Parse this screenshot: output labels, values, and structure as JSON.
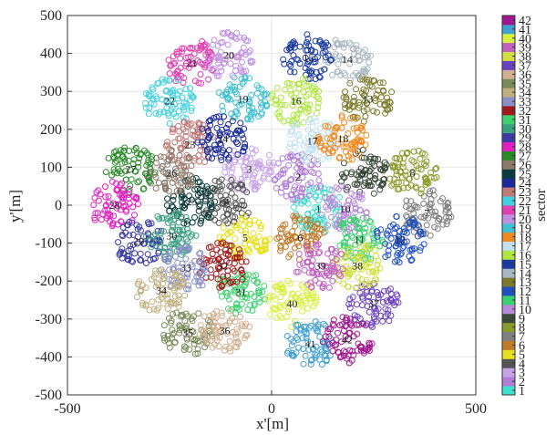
{
  "chart_data": {
    "type": "scatter",
    "title": "",
    "xlabel": "x'[m]",
    "ylabel": "y'[m]",
    "xlim": [
      -500,
      500
    ],
    "ylim": [
      -500,
      500
    ],
    "xticks": [
      "-500",
      "0",
      "500"
    ],
    "yticks": [
      "500",
      "400",
      "300",
      "200",
      "100",
      "0",
      "-100",
      "-200",
      "-300",
      "-400",
      "-500"
    ],
    "grid": true,
    "marker": "open-circle",
    "colorbar": {
      "label": "sector",
      "tick_labels": [
        "1",
        "2",
        "3",
        "4",
        "5",
        "6",
        "7",
        "8",
        "9",
        "10",
        "11",
        "12",
        "13",
        "14",
        "15",
        "16",
        "17",
        "18",
        "19",
        "20",
        "21",
        "22",
        "23",
        "24",
        "25",
        "26",
        "27",
        "28",
        "29",
        "30",
        "31",
        "32",
        "33",
        "34",
        "35",
        "36",
        "37",
        "38",
        "39",
        "40",
        "41",
        "42"
      ],
      "colors": [
        "#40e0d0",
        "#b07cd6",
        "#c6a2e6",
        "#555555",
        "#e6e020",
        "#c07a2a",
        "#7f7f7f",
        "#8a9a2a",
        "#3a4a3a",
        "#b58ad6",
        "#3ad070",
        "#2050c0",
        "#7a7a2a",
        "#a8b8c0",
        "#1a3aa0",
        "#b0e640",
        "#c0e0f0",
        "#f08a20",
        "#40c0d0",
        "#c090e0",
        "#e040b0",
        "#40d0e0",
        "#c07878",
        "#1a2a9a",
        "#0a3a3a",
        "#8a7a6a",
        "#2a8a2a",
        "#e020c0",
        "#3a3aa0",
        "#3aa080",
        "#40d070",
        "#a01a1a",
        "#8a90c8",
        "#c0b080",
        "#7a8a5a",
        "#d0b090",
        "#6a40c0",
        "#d0e040",
        "#c060c0",
        "#d8f040",
        "#40a0d0",
        "#a01890"
      ]
    },
    "sectors": [
      {
        "id": "1",
        "x": 115,
        "y": -10
      },
      {
        "id": "2",
        "x": 65,
        "y": 75
      },
      {
        "id": "3",
        "x": -55,
        "y": 95
      },
      {
        "id": "4",
        "x": -110,
        "y": 10
      },
      {
        "id": "5",
        "x": -65,
        "y": -85
      },
      {
        "id": "6",
        "x": 70,
        "y": -85
      },
      {
        "id": "7",
        "x": 380,
        "y": -20
      },
      {
        "id": "8",
        "x": 345,
        "y": 85
      },
      {
        "id": "9",
        "x": 225,
        "y": 85
      },
      {
        "id": "10",
        "x": 180,
        "y": -10
      },
      {
        "id": "11",
        "x": 215,
        "y": -90
      },
      {
        "id": "12",
        "x": 315,
        "y": -90
      },
      {
        "id": "13",
        "x": 235,
        "y": 280
      },
      {
        "id": "14",
        "x": 185,
        "y": 385
      },
      {
        "id": "15",
        "x": 90,
        "y": 390
      },
      {
        "id": "16",
        "x": 60,
        "y": 275
      },
      {
        "id": "17",
        "x": 100,
        "y": 170
      },
      {
        "id": "18",
        "x": 175,
        "y": 175
      },
      {
        "id": "19",
        "x": -70,
        "y": 280
      },
      {
        "id": "20",
        "x": -105,
        "y": 395
      },
      {
        "id": "21",
        "x": -195,
        "y": 375
      },
      {
        "id": "22",
        "x": -250,
        "y": 275
      },
      {
        "id": "23",
        "x": -200,
        "y": 160
      },
      {
        "id": "24",
        "x": -120,
        "y": 175
      },
      {
        "id": "25",
        "x": -195,
        "y": 10
      },
      {
        "id": "26",
        "x": -245,
        "y": 85
      },
      {
        "id": "27",
        "x": -345,
        "y": 95
      },
      {
        "id": "28",
        "x": -385,
        "y": 0
      },
      {
        "id": "29",
        "x": -325,
        "y": -95
      },
      {
        "id": "30",
        "x": -245,
        "y": -80
      },
      {
        "id": "31",
        "x": -75,
        "y": -230
      },
      {
        "id": "32",
        "x": -120,
        "y": -160
      },
      {
        "id": "33",
        "x": -210,
        "y": -165
      },
      {
        "id": "34",
        "x": -270,
        "y": -225
      },
      {
        "id": "35",
        "x": -205,
        "y": -335
      },
      {
        "id": "36",
        "x": -115,
        "y": -330
      },
      {
        "id": "37",
        "x": 250,
        "y": -260
      },
      {
        "id": "38",
        "x": 210,
        "y": -160
      },
      {
        "id": "39",
        "x": 120,
        "y": -160
      },
      {
        "id": "40",
        "x": 50,
        "y": -260
      },
      {
        "id": "41",
        "x": 95,
        "y": -365
      },
      {
        "id": "42",
        "x": 185,
        "y": -355
      }
    ]
  }
}
